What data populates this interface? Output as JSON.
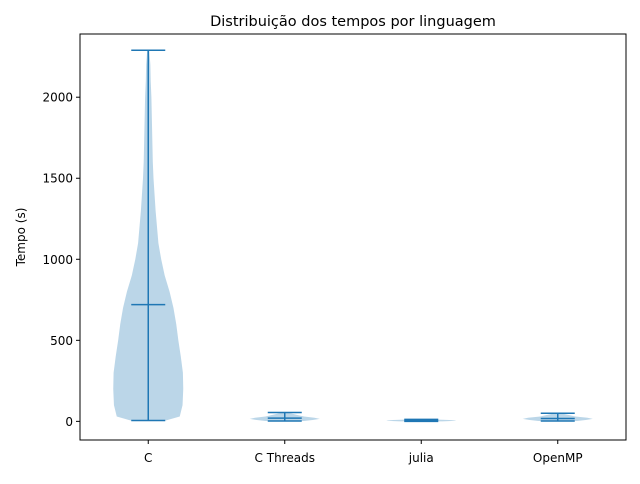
{
  "chart_data": {
    "type": "violin",
    "title": "Distribuição dos tempos por linguagem",
    "xlabel": "",
    "ylabel": "Tempo (s)",
    "ylim": [
      -115,
      2390
    ],
    "y_ticks": [
      0,
      500,
      1000,
      1500,
      2000
    ],
    "y_tick_labels": [
      "0",
      "500",
      "1000",
      "1500",
      "2000"
    ],
    "categories": [
      "C",
      "C Threads",
      "julia",
      "OpenMP"
    ],
    "series_color": "#1f77b4",
    "body_color": "#1f77b4",
    "body_opacity": 0.3,
    "grid": false,
    "violins": [
      {
        "label": "C",
        "min": 5,
        "mean": 720,
        "max": 2290,
        "density_profile": [
          [
            5,
            0.5
          ],
          [
            30,
            0.9
          ],
          [
            100,
            0.98
          ],
          [
            200,
            1.0
          ],
          [
            300,
            0.99
          ],
          [
            400,
            0.93
          ],
          [
            500,
            0.86
          ],
          [
            600,
            0.8
          ],
          [
            700,
            0.72
          ],
          [
            800,
            0.61
          ],
          [
            900,
            0.47
          ],
          [
            1000,
            0.37
          ],
          [
            1100,
            0.29
          ],
          [
            1200,
            0.25
          ],
          [
            1300,
            0.21
          ],
          [
            1400,
            0.18
          ],
          [
            1500,
            0.15
          ],
          [
            1600,
            0.13
          ],
          [
            1700,
            0.12
          ],
          [
            1800,
            0.11
          ],
          [
            1900,
            0.1
          ],
          [
            2000,
            0.09
          ],
          [
            2100,
            0.07
          ],
          [
            2200,
            0.06
          ],
          [
            2290,
            0.03
          ]
        ]
      },
      {
        "label": "C Threads",
        "min": 2,
        "mean": 20,
        "max": 55,
        "density_profile": [
          [
            2,
            0.55
          ],
          [
            8,
            0.8
          ],
          [
            15,
            1.0
          ],
          [
            22,
            0.85
          ],
          [
            30,
            0.55
          ],
          [
            40,
            0.35
          ],
          [
            48,
            0.2
          ],
          [
            55,
            0.08
          ]
        ]
      },
      {
        "label": "julia",
        "min": 0,
        "mean": 5,
        "max": 12,
        "density_profile": [
          [
            0,
            0.6
          ],
          [
            3,
            0.95
          ],
          [
            5,
            1.0
          ],
          [
            8,
            0.8
          ],
          [
            12,
            0.3
          ]
        ]
      },
      {
        "label": "OpenMP",
        "min": 2,
        "mean": 18,
        "max": 50,
        "density_profile": [
          [
            2,
            0.55
          ],
          [
            8,
            0.8
          ],
          [
            15,
            1.0
          ],
          [
            22,
            0.85
          ],
          [
            30,
            0.5
          ],
          [
            40,
            0.3
          ],
          [
            50,
            0.08
          ]
        ]
      }
    ]
  }
}
